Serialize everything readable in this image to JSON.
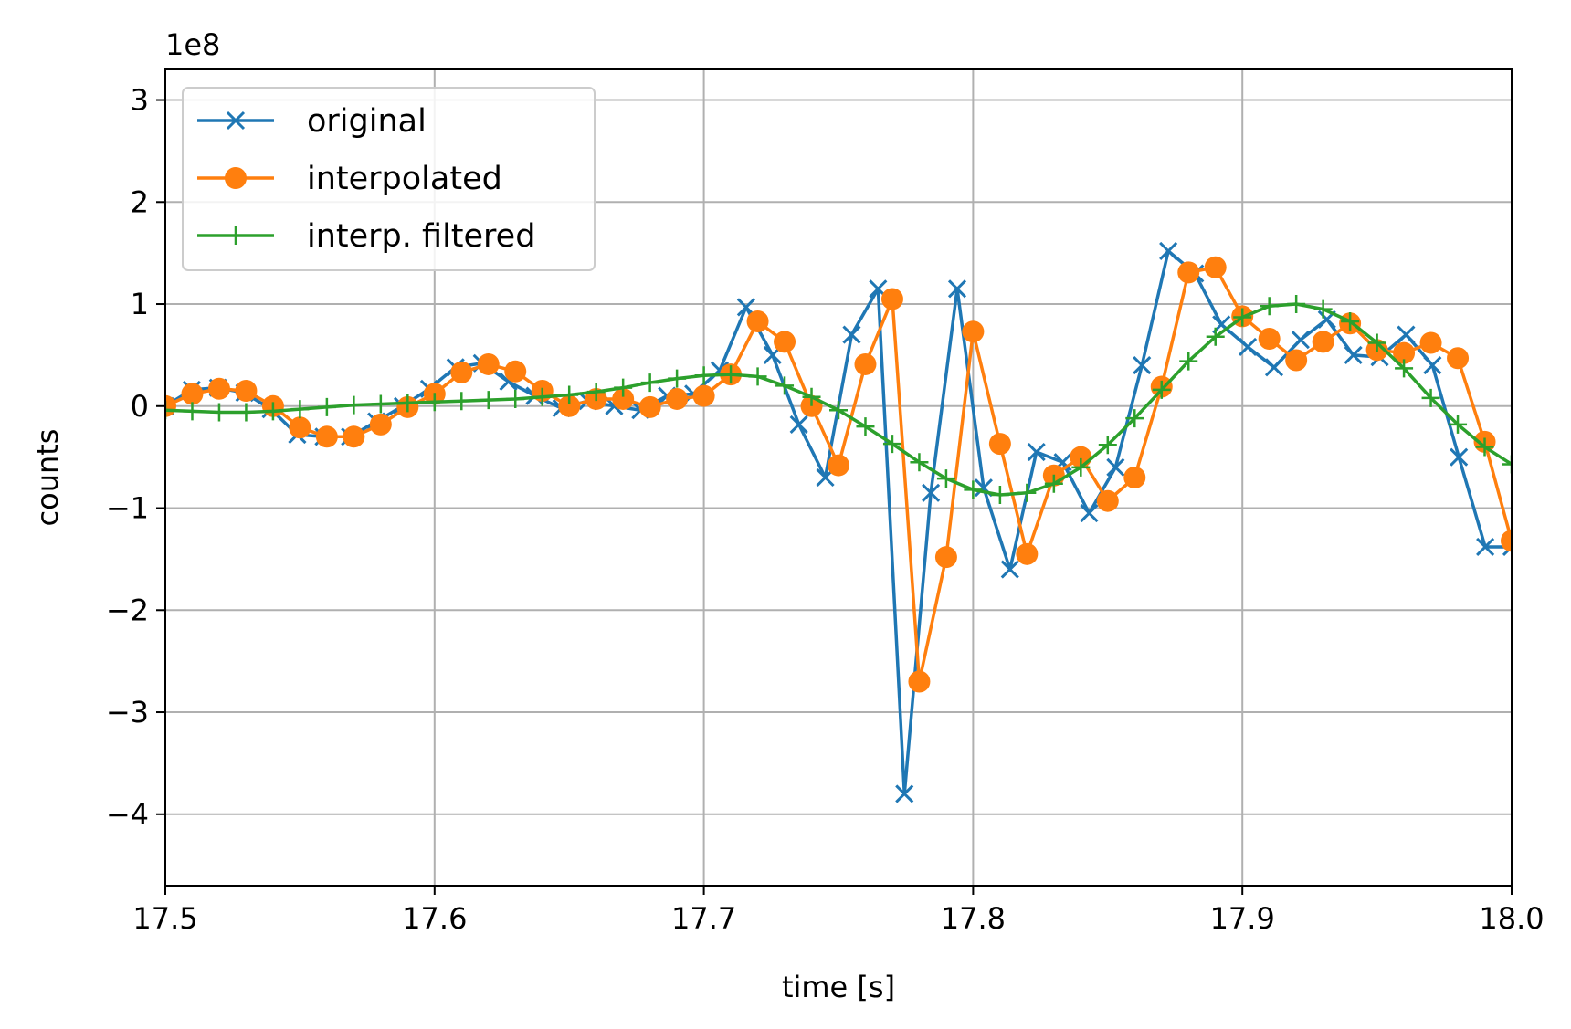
{
  "chart_data": {
    "type": "line",
    "title": "",
    "xlabel": "time [s]",
    "ylabel": "counts",
    "y_scale_label": "1e8",
    "xlim": [
      17.5,
      18.0
    ],
    "ylim": [
      -4.7,
      3.3
    ],
    "x_ticks": [
      17.5,
      17.6,
      17.7,
      17.8,
      17.9,
      18.0
    ],
    "x_tick_labels": [
      "17.5",
      "17.6",
      "17.7",
      "17.8",
      "17.9",
      "18.0"
    ],
    "y_ticks": [
      -4,
      -3,
      -2,
      -1,
      0,
      1,
      2,
      3
    ],
    "y_tick_labels": [
      "−4",
      "−3",
      "−2",
      "−1",
      "0",
      "1",
      "2",
      "3"
    ],
    "grid": true,
    "legend_position": "top-left",
    "series": [
      {
        "name": "original",
        "color": "#1f77b4",
        "marker": "x",
        "x": [
          17.5,
          17.5098,
          17.5196,
          17.5294,
          17.5392,
          17.549,
          17.5588,
          17.5686,
          17.5784,
          17.5882,
          17.598,
          17.6078,
          17.6176,
          17.6274,
          17.6372,
          17.6471,
          17.6569,
          17.6667,
          17.6765,
          17.6863,
          17.6961,
          17.7059,
          17.7157,
          17.7255,
          17.7353,
          17.7451,
          17.7549,
          17.7647,
          17.7745,
          17.7843,
          17.7941,
          17.8039,
          17.8137,
          17.8235,
          17.8333,
          17.8431,
          17.8529,
          17.8627,
          17.8725,
          17.8824,
          17.8922,
          17.902,
          17.9118,
          17.9216,
          17.9314,
          17.9412,
          17.951,
          17.9608,
          17.9706,
          17.9804,
          17.9902,
          18.0
        ],
        "y": [
          0.0,
          0.16,
          0.18,
          0.13,
          -0.03,
          -0.28,
          -0.3,
          -0.3,
          -0.15,
          0.0,
          0.17,
          0.38,
          0.42,
          0.24,
          0.1,
          -0.02,
          0.05,
          0.0,
          -0.04,
          0.1,
          0.12,
          0.35,
          0.97,
          0.5,
          -0.18,
          -0.7,
          0.7,
          1.15,
          -3.8,
          -0.85,
          1.15,
          -0.8,
          -1.6,
          -0.45,
          -0.55,
          -1.05,
          -0.6,
          0.4,
          1.52,
          1.3,
          0.8,
          0.58,
          0.38,
          0.65,
          0.85,
          0.5,
          0.48,
          0.7,
          0.4,
          -0.5,
          -1.38,
          -1.38
        ]
      },
      {
        "name": "interpolated",
        "color": "#ff7f0e",
        "marker": "o",
        "x": [
          17.5,
          17.51,
          17.52,
          17.53,
          17.54,
          17.55,
          17.56,
          17.57,
          17.58,
          17.59,
          17.6,
          17.61,
          17.62,
          17.63,
          17.64,
          17.65,
          17.66,
          17.67,
          17.68,
          17.69,
          17.7,
          17.71,
          17.72,
          17.73,
          17.74,
          17.75,
          17.76,
          17.77,
          17.78,
          17.79,
          17.8,
          17.81,
          17.82,
          17.83,
          17.84,
          17.85,
          17.86,
          17.87,
          17.88,
          17.89,
          17.9,
          17.91,
          17.92,
          17.93,
          17.94,
          17.95,
          17.96,
          17.97,
          17.98,
          17.99,
          18.0
        ],
        "y": [
          0.0,
          0.12,
          0.17,
          0.15,
          0.0,
          -0.21,
          -0.3,
          -0.3,
          -0.18,
          -0.01,
          0.12,
          0.33,
          0.41,
          0.34,
          0.15,
          0.0,
          0.07,
          0.07,
          -0.01,
          0.07,
          0.1,
          0.31,
          0.83,
          0.63,
          0.0,
          -0.58,
          0.41,
          1.05,
          -2.7,
          -1.48,
          0.73,
          -0.37,
          -1.45,
          -0.68,
          -0.5,
          -0.93,
          -0.7,
          0.19,
          1.31,
          1.36,
          0.88,
          0.66,
          0.45,
          0.63,
          0.81,
          0.55,
          0.52,
          0.62,
          0.47,
          -0.35,
          -1.32
        ]
      },
      {
        "name": "interp. filtered",
        "color": "#2ca02c",
        "marker": "+",
        "x": [
          17.5,
          17.51,
          17.52,
          17.53,
          17.54,
          17.55,
          17.56,
          17.57,
          17.58,
          17.59,
          17.6,
          17.61,
          17.62,
          17.63,
          17.64,
          17.65,
          17.66,
          17.67,
          17.68,
          17.69,
          17.7,
          17.71,
          17.72,
          17.73,
          17.74,
          17.75,
          17.76,
          17.77,
          17.78,
          17.79,
          17.8,
          17.81,
          17.82,
          17.83,
          17.84,
          17.85,
          17.86,
          17.87,
          17.88,
          17.89,
          17.9,
          17.91,
          17.92,
          17.93,
          17.94,
          17.95,
          17.96,
          17.97,
          17.98,
          17.99,
          18.0
        ],
        "y": [
          -0.04,
          -0.05,
          -0.06,
          -0.06,
          -0.05,
          -0.03,
          -0.01,
          0.01,
          0.02,
          0.03,
          0.04,
          0.05,
          0.06,
          0.07,
          0.09,
          0.11,
          0.14,
          0.18,
          0.23,
          0.27,
          0.3,
          0.31,
          0.29,
          0.2,
          0.09,
          -0.04,
          -0.2,
          -0.37,
          -0.55,
          -0.71,
          -0.82,
          -0.87,
          -0.85,
          -0.76,
          -0.6,
          -0.38,
          -0.12,
          0.16,
          0.44,
          0.68,
          0.87,
          0.98,
          1.0,
          0.95,
          0.83,
          0.62,
          0.37,
          0.08,
          -0.18,
          -0.4,
          -0.57
        ]
      }
    ]
  }
}
